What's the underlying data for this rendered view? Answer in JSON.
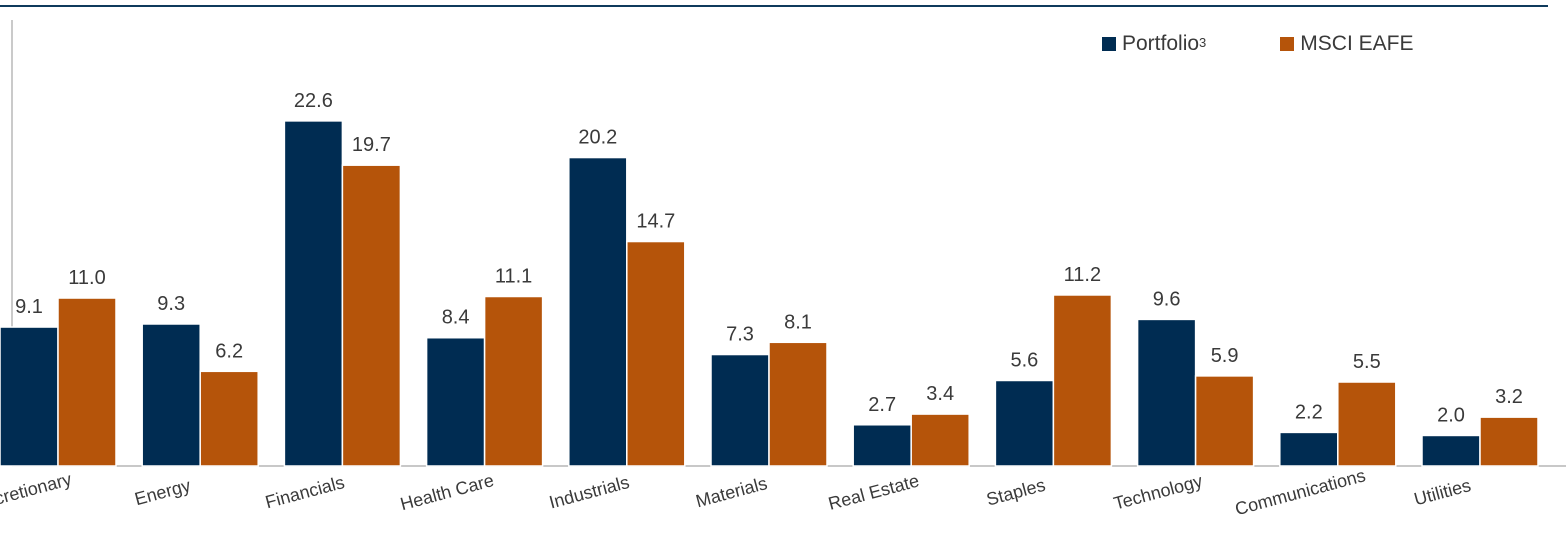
{
  "chart_data": {
    "type": "bar",
    "categories": [
      "Discretionary",
      "Energy",
      "Financials",
      "Health Care",
      "Industrials",
      "Materials",
      "Real Estate",
      "Staples",
      "Technology",
      "Communications",
      "Utilities"
    ],
    "series": [
      {
        "name": "Portfolio",
        "name_superscript": "3",
        "color": "#002c52",
        "values": [
          9.1,
          9.3,
          22.6,
          8.4,
          20.2,
          7.3,
          2.7,
          5.6,
          9.6,
          2.2,
          2.0
        ]
      },
      {
        "name": "MSCI EAFE",
        "color": "#b5540a",
        "values": [
          11.0,
          6.2,
          19.7,
          11.1,
          14.7,
          8.1,
          3.4,
          11.2,
          5.9,
          5.5,
          3.2
        ]
      }
    ],
    "ylim": [
      0,
      25
    ],
    "grid": false,
    "legend_position": "top-right",
    "data_labels": true
  }
}
